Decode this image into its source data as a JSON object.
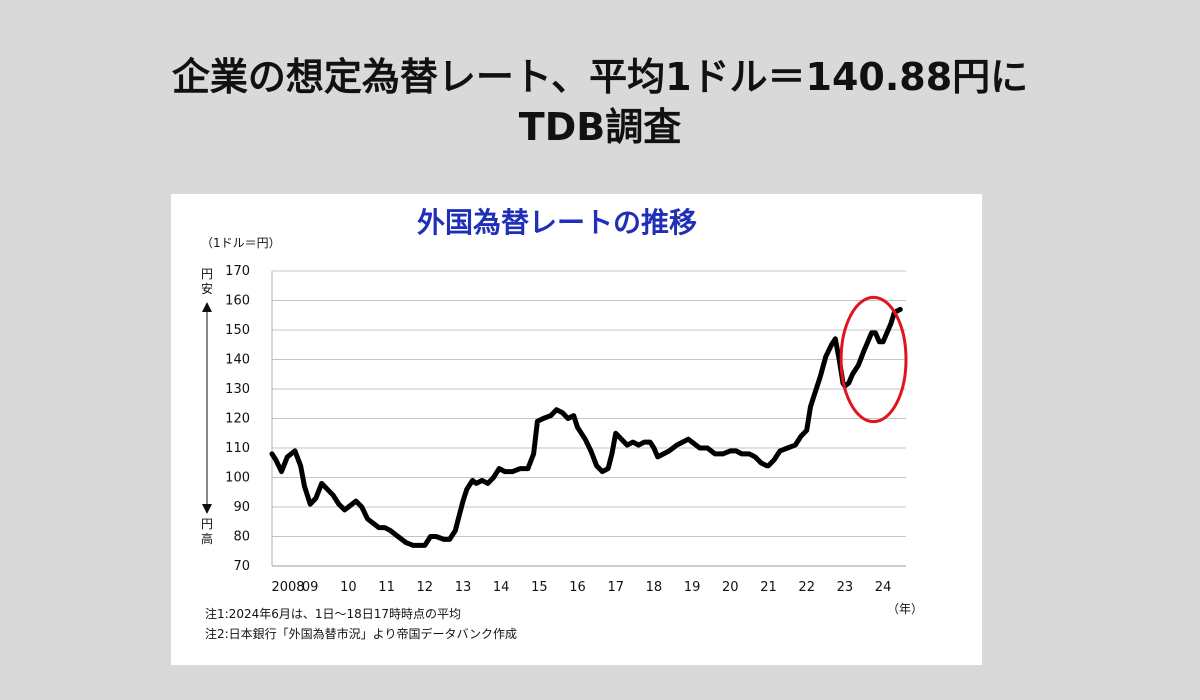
{
  "headline": {
    "line1": "企業の想定為替レート、平均1ドル＝140.88円に",
    "line2": "TDB調査"
  },
  "colors": {
    "page_bg": "#d9d9d9",
    "panel_bg": "#ffffff",
    "title": "#1f2fb8",
    "line": "#000000",
    "highlight_circle": "#e0141e",
    "grid": "#b0b0b0"
  },
  "chart_data": {
    "type": "line",
    "title": "外国為替レートの推移",
    "unit_label": "（1ドル＝円）",
    "ylabel_top": [
      "円",
      "安"
    ],
    "ylabel_bottom": [
      "円",
      "高"
    ],
    "xlabel_unit": "（年）",
    "ylim": [
      70,
      170
    ],
    "xlim": [
      2008,
      2024.6
    ],
    "y_ticks": [
      170,
      160,
      150,
      140,
      130,
      120,
      110,
      100,
      90,
      80,
      70
    ],
    "x_ticks": [
      {
        "value": 2008,
        "label": "2008"
      },
      {
        "value": 2009,
        "label": "09"
      },
      {
        "value": 2010,
        "label": "10"
      },
      {
        "value": 2011,
        "label": "11"
      },
      {
        "value": 2012,
        "label": "12"
      },
      {
        "value": 2013,
        "label": "13"
      },
      {
        "value": 2014,
        "label": "14"
      },
      {
        "value": 2015,
        "label": "15"
      },
      {
        "value": 2016,
        "label": "16"
      },
      {
        "value": 2017,
        "label": "17"
      },
      {
        "value": 2018,
        "label": "18"
      },
      {
        "value": 2019,
        "label": "19"
      },
      {
        "value": 2020,
        "label": "20"
      },
      {
        "value": 2021,
        "label": "21"
      },
      {
        "value": 2022,
        "label": "22"
      },
      {
        "value": 2023,
        "label": "23"
      },
      {
        "value": 2024,
        "label": "24"
      }
    ],
    "grid": "horizontal",
    "highlight": {
      "x_range": [
        2022.9,
        2024.6
      ],
      "y_range": [
        123,
        157
      ]
    },
    "series": [
      {
        "x": [
          2008.0,
          2008.1,
          2008.25,
          2008.4,
          2008.5,
          2008.6,
          2008.75,
          2008.85,
          2009.0,
          2009.15,
          2009.3,
          2009.45,
          2009.6,
          2009.75,
          2009.9,
          2010.0,
          2010.2,
          2010.35,
          2010.5,
          2010.6,
          2010.8,
          2010.95,
          2011.1,
          2011.3,
          2011.5,
          2011.7,
          2011.85,
          2012.0,
          2012.15,
          2012.3,
          2012.5,
          2012.65,
          2012.8,
          2012.9,
          2013.0,
          2013.1,
          2013.25,
          2013.35,
          2013.5,
          2013.65,
          2013.8,
          2013.95,
          2014.1,
          2014.3,
          2014.5,
          2014.7,
          2014.85,
          2014.95,
          2015.1,
          2015.3,
          2015.45,
          2015.6,
          2015.75,
          2015.9,
          2016.0,
          2016.2,
          2016.35,
          2016.5,
          2016.65,
          2016.8,
          2016.9,
          2017.0,
          2017.15,
          2017.3,
          2017.45,
          2017.6,
          2017.75,
          2017.9,
          2018.0,
          2018.1,
          2018.25,
          2018.4,
          2018.6,
          2018.75,
          2018.9,
          2019.0,
          2019.2,
          2019.4,
          2019.6,
          2019.8,
          2020.0,
          2020.15,
          2020.3,
          2020.5,
          2020.65,
          2020.8,
          2020.95,
          2021.0,
          2021.15,
          2021.3,
          2021.5,
          2021.7,
          2021.85,
          2022.0,
          2022.1,
          2022.2,
          2022.35,
          2022.5,
          2022.65,
          2022.75,
          2022.85,
          2022.95,
          2023.0,
          2023.1,
          2023.2,
          2023.35,
          2023.5,
          2023.6,
          2023.7,
          2023.8,
          2023.9,
          2024.0,
          2024.1,
          2024.2,
          2024.3,
          2024.45
        ],
        "values": [
          108,
          106,
          102,
          107,
          108,
          109,
          104,
          97,
          91,
          93,
          98,
          96,
          94,
          91,
          89,
          90,
          92,
          90,
          86,
          85,
          83,
          83,
          82,
          80,
          78,
          77,
          77,
          77,
          80,
          80,
          79,
          79,
          82,
          87,
          92,
          96,
          99,
          98,
          99,
          98,
          100,
          103,
          102,
          102,
          103,
          103,
          108,
          119,
          120,
          121,
          123,
          122,
          120,
          121,
          117,
          113,
          109,
          104,
          102,
          103,
          108,
          115,
          113,
          111,
          112,
          111,
          112,
          112,
          110,
          107,
          108,
          109,
          111,
          112,
          113,
          112,
          110,
          110,
          108,
          108,
          109,
          109,
          108,
          108,
          107,
          105,
          104,
          104,
          106,
          109,
          110,
          111,
          114,
          116,
          124,
          128,
          134,
          141,
          145,
          147,
          140,
          132,
          131,
          132,
          135,
          138,
          143,
          146,
          149,
          149,
          146,
          146,
          149,
          152,
          156,
          157
        ]
      }
    ]
  },
  "notes": {
    "n1": "注1:2024年6月は、1日～18日17時時点の平均",
    "n2": "注2:日本銀行「外国為替市況」より帝国データバンク作成"
  }
}
